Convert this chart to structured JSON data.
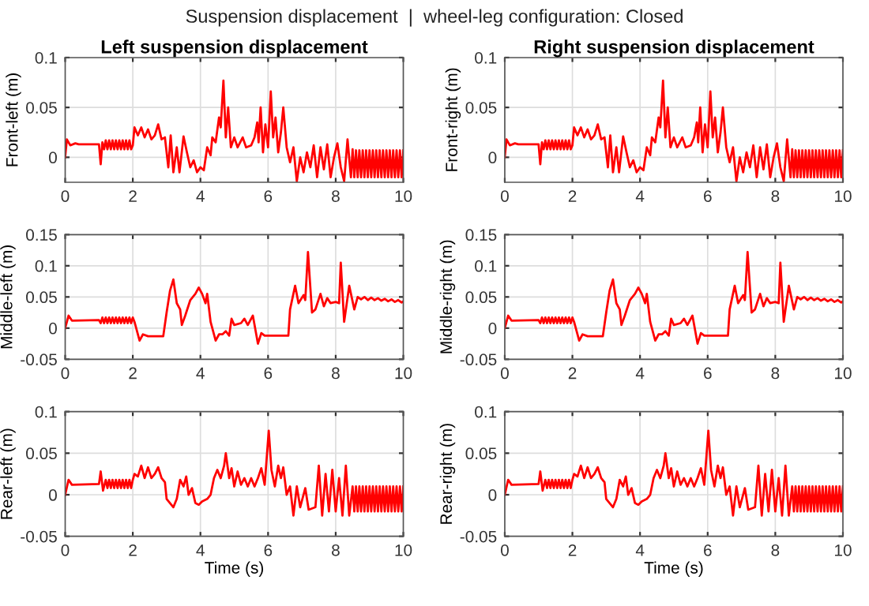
{
  "chart_data": [
    {
      "type": "line",
      "title": "Left suspension displacement",
      "annotations": [
        "Suspension displacement  |  wheel-leg configuration: Closed"
      ],
      "ylabel": "Front-left (m)",
      "xlim": [
        0,
        10
      ],
      "ylim": [
        -0.025,
        0.1
      ],
      "xticks": [
        0,
        2,
        4,
        6,
        8,
        10
      ],
      "yticks": [
        0,
        0.05,
        0.1
      ],
      "grid": true,
      "series": [
        {
          "color": "#ff0000",
          "x": [
            0,
            0.05,
            0.15,
            0.3,
            0.4,
            1.0,
            1.05,
            1.1,
            1.15,
            1.2,
            1.25,
            1.3,
            1.35,
            1.4,
            1.45,
            1.5,
            1.55,
            1.6,
            1.65,
            1.7,
            1.75,
            1.8,
            1.85,
            1.9,
            1.95,
            2.0,
            2.05,
            2.15,
            2.25,
            2.35,
            2.45,
            2.55,
            2.65,
            2.75,
            2.85,
            2.95,
            3.05,
            3.12,
            3.2,
            3.3,
            3.38,
            3.5,
            3.6,
            3.7,
            3.8,
            3.9,
            4.0,
            4.1,
            4.2,
            4.3,
            4.35,
            4.45,
            4.55,
            4.6,
            4.68,
            4.75,
            4.82,
            4.9,
            5.0,
            5.1,
            5.25,
            5.35,
            5.5,
            5.6,
            5.68,
            5.72,
            5.78,
            5.85,
            5.92,
            6.0,
            6.08,
            6.15,
            6.22,
            6.3,
            6.38,
            6.45,
            6.55,
            6.65,
            6.75,
            6.85,
            6.95,
            7.05,
            7.15,
            7.25,
            7.35,
            7.45,
            7.55,
            7.65,
            7.75,
            7.85,
            7.95,
            8.05,
            8.15,
            8.25,
            8.35,
            8.45,
            8.5,
            8.55,
            8.6,
            8.65,
            8.7,
            8.75,
            8.8,
            8.85,
            8.9,
            8.95,
            9.0,
            9.05,
            9.1,
            9.15,
            9.2,
            9.25,
            9.3,
            9.35,
            9.4,
            9.45,
            9.5,
            9.55,
            9.6,
            9.65,
            9.7,
            9.75,
            9.8,
            9.85,
            9.9,
            9.95,
            10.0
          ],
          "values": [
            0,
            0.018,
            0.012,
            0.014,
            0.013,
            0.013,
            -0.007,
            0.015,
            0.008,
            0.017,
            0.008,
            0.017,
            0.008,
            0.017,
            0.008,
            0.017,
            0.008,
            0.017,
            0.008,
            0.017,
            0.008,
            0.017,
            0.008,
            0.017,
            0.008,
            0.012,
            0.03,
            0.022,
            0.03,
            0.02,
            0.028,
            0.018,
            0.022,
            0.033,
            0.018,
            0.02,
            -0.01,
            0.022,
            -0.015,
            0.01,
            -0.015,
            0.021,
            0.005,
            -0.01,
            -0.003,
            -0.015,
            -0.01,
            -0.013,
            0.01,
            0.002,
            0.02,
            0.015,
            0.04,
            0.03,
            0.077,
            0.02,
            0.05,
            0.01,
            0.02,
            0.01,
            0.02,
            0.01,
            0.012,
            0.02,
            0.035,
            0.015,
            0.05,
            0.005,
            0.033,
            0.01,
            0.066,
            0.02,
            0.04,
            0.005,
            0.025,
            0.05,
            0.01,
            -0.005,
            0.01,
            -0.024,
            0,
            -0.015,
            0.005,
            -0.01,
            0.012,
            -0.02,
            0.01,
            -0.012,
            0.013,
            -0.02,
            0,
            0.014,
            -0.01,
            -0.024,
            0.018,
            -0.02,
            0.008,
            -0.02,
            0.007,
            -0.02,
            0.007,
            -0.02,
            0.007,
            -0.02,
            0.007,
            -0.02,
            0.007,
            -0.02,
            0.007,
            -0.02,
            0.007,
            -0.02,
            0.007,
            -0.02,
            0.007,
            -0.02,
            0.007,
            -0.02,
            0.007,
            -0.02,
            0.007,
            -0.02,
            0.007,
            -0.02,
            0.007,
            -0.02,
            0.007
          ]
        }
      ]
    },
    {
      "type": "line",
      "title": "Right suspension displacement",
      "ylabel": "Front-right (m)",
      "xlim": [
        0,
        10
      ],
      "ylim": [
        -0.025,
        0.1
      ],
      "xticks": [
        0,
        2,
        4,
        6,
        8,
        10
      ],
      "yticks": [
        0,
        0.05,
        0.1
      ],
      "grid": true,
      "series": [
        {
          "color": "#ff0000",
          "x": [
            0,
            0.05,
            0.15,
            0.3,
            0.4,
            1.0,
            1.05,
            1.1,
            1.15,
            1.2,
            1.25,
            1.3,
            1.35,
            1.4,
            1.45,
            1.5,
            1.55,
            1.6,
            1.65,
            1.7,
            1.75,
            1.8,
            1.85,
            1.9,
            1.95,
            2.0,
            2.05,
            2.15,
            2.25,
            2.35,
            2.45,
            2.55,
            2.65,
            2.75,
            2.85,
            2.95,
            3.05,
            3.12,
            3.2,
            3.3,
            3.38,
            3.5,
            3.6,
            3.7,
            3.8,
            3.9,
            4.0,
            4.1,
            4.2,
            4.3,
            4.35,
            4.45,
            4.55,
            4.6,
            4.68,
            4.75,
            4.82,
            4.9,
            5.0,
            5.1,
            5.25,
            5.35,
            5.5,
            5.6,
            5.68,
            5.72,
            5.78,
            5.85,
            5.92,
            6.0,
            6.08,
            6.15,
            6.22,
            6.3,
            6.38,
            6.45,
            6.55,
            6.65,
            6.75,
            6.85,
            6.95,
            7.05,
            7.15,
            7.25,
            7.35,
            7.45,
            7.55,
            7.65,
            7.75,
            7.85,
            7.95,
            8.05,
            8.15,
            8.25,
            8.35,
            8.45,
            8.5,
            8.55,
            8.6,
            8.65,
            8.7,
            8.75,
            8.8,
            8.85,
            8.9,
            8.95,
            9.0,
            9.05,
            9.1,
            9.15,
            9.2,
            9.25,
            9.3,
            9.35,
            9.4,
            9.45,
            9.5,
            9.55,
            9.6,
            9.65,
            9.7,
            9.75,
            9.8,
            9.85,
            9.9,
            9.95,
            10.0
          ],
          "values": [
            0,
            0.018,
            0.012,
            0.014,
            0.013,
            0.013,
            -0.007,
            0.015,
            0.008,
            0.017,
            0.008,
            0.017,
            0.008,
            0.017,
            0.008,
            0.017,
            0.008,
            0.017,
            0.008,
            0.017,
            0.008,
            0.017,
            0.008,
            0.017,
            0.008,
            0.012,
            0.03,
            0.022,
            0.03,
            0.02,
            0.028,
            0.018,
            0.022,
            0.033,
            0.018,
            0.02,
            -0.01,
            0.022,
            -0.015,
            0.01,
            -0.015,
            0.021,
            0.005,
            -0.01,
            -0.003,
            -0.015,
            -0.01,
            -0.013,
            0.01,
            0.002,
            0.02,
            0.015,
            0.04,
            0.03,
            0.077,
            0.02,
            0.05,
            0.01,
            0.02,
            0.01,
            0.02,
            0.01,
            0.012,
            0.02,
            0.035,
            0.015,
            0.05,
            0.005,
            0.033,
            0.01,
            0.066,
            0.02,
            0.04,
            0.005,
            0.025,
            0.05,
            0.01,
            -0.005,
            0.01,
            -0.024,
            0,
            -0.015,
            0.005,
            -0.01,
            0.012,
            -0.02,
            0.01,
            -0.012,
            0.013,
            -0.02,
            0,
            0.014,
            -0.01,
            -0.024,
            0.018,
            -0.02,
            0.008,
            -0.02,
            0.007,
            -0.02,
            0.007,
            -0.02,
            0.007,
            -0.02,
            0.007,
            -0.02,
            0.007,
            -0.02,
            0.007,
            -0.02,
            0.007,
            -0.02,
            0.007,
            -0.02,
            0.007,
            -0.02,
            0.007,
            -0.02,
            0.007,
            -0.02,
            0.007,
            -0.02,
            0.007,
            -0.02,
            0.007,
            -0.02,
            0.007
          ]
        }
      ]
    },
    {
      "type": "line",
      "ylabel": "Middle-left (m)",
      "xlim": [
        0,
        10
      ],
      "ylim": [
        -0.05,
        0.15
      ],
      "xticks": [
        0,
        2,
        4,
        6,
        8,
        10
      ],
      "yticks": [
        -0.05,
        0,
        0.05,
        0.1,
        0.15
      ],
      "grid": true,
      "series": [
        {
          "color": "#ff0000",
          "x": [
            0,
            0.1,
            0.2,
            1.0,
            1.05,
            1.1,
            1.15,
            1.2,
            1.25,
            1.3,
            1.35,
            1.4,
            1.45,
            1.5,
            1.55,
            1.6,
            1.65,
            1.7,
            1.75,
            1.8,
            1.85,
            1.9,
            1.95,
            2.0,
            2.05,
            2.2,
            2.3,
            2.45,
            2.9,
            3.0,
            3.1,
            3.2,
            3.3,
            3.4,
            3.45,
            3.55,
            3.7,
            3.85,
            3.95,
            4.05,
            4.15,
            4.2,
            4.3,
            4.45,
            4.55,
            4.65,
            4.75,
            4.85,
            4.92,
            5.0,
            5.2,
            5.3,
            5.4,
            5.55,
            5.6,
            5.7,
            5.8,
            5.9,
            6.6,
            6.65,
            6.8,
            6.9,
            7.05,
            7.1,
            7.18,
            7.3,
            7.4,
            7.55,
            7.65,
            7.75,
            7.85,
            8.0,
            8.1,
            8.15,
            8.25,
            8.4,
            8.55,
            8.65,
            8.75,
            8.85,
            8.95,
            9.05,
            9.15,
            9.25,
            9.35,
            9.45,
            9.55,
            9.65,
            9.75,
            9.85,
            9.95,
            10.0
          ],
          "values": [
            0,
            0.02,
            0.012,
            0.013,
            0.008,
            0.017,
            0.008,
            0.017,
            0.008,
            0.017,
            0.008,
            0.017,
            0.008,
            0.017,
            0.008,
            0.017,
            0.008,
            0.017,
            0.008,
            0.017,
            0.008,
            0.017,
            0.008,
            0.017,
            0.01,
            -0.02,
            -0.01,
            -0.013,
            -0.013,
            0.025,
            0.06,
            0.078,
            0.04,
            0.03,
            0.005,
            0.02,
            0.045,
            0.055,
            0.065,
            0.055,
            0.04,
            0.055,
            0.01,
            -0.02,
            -0.01,
            -0.01,
            -0.005,
            -0.012,
            0.015,
            0.005,
            0.008,
            0.015,
            0.005,
            0.02,
            0.005,
            -0.025,
            -0.008,
            -0.012,
            -0.012,
            0.03,
            0.068,
            0.04,
            0.053,
            0.045,
            0.122,
            0.025,
            0.03,
            0.055,
            0.035,
            0.048,
            0.04,
            0.042,
            0.04,
            0.105,
            0.01,
            0.068,
            0.03,
            0.05,
            0.046,
            0.05,
            0.045,
            0.049,
            0.045,
            0.048,
            0.044,
            0.047,
            0.043,
            0.046,
            0.042,
            0.045,
            0.041,
            0.043
          ]
        }
      ]
    },
    {
      "type": "line",
      "ylabel": "Middle-right (m)",
      "xlim": [
        0,
        10
      ],
      "ylim": [
        -0.05,
        0.15
      ],
      "xticks": [
        0,
        2,
        4,
        6,
        8,
        10
      ],
      "yticks": [
        -0.05,
        0,
        0.05,
        0.1,
        0.15
      ],
      "grid": true,
      "series": [
        {
          "color": "#ff0000",
          "x": [
            0,
            0.1,
            0.2,
            1.0,
            1.05,
            1.1,
            1.15,
            1.2,
            1.25,
            1.3,
            1.35,
            1.4,
            1.45,
            1.5,
            1.55,
            1.6,
            1.65,
            1.7,
            1.75,
            1.8,
            1.85,
            1.9,
            1.95,
            2.0,
            2.05,
            2.2,
            2.3,
            2.45,
            2.9,
            3.0,
            3.1,
            3.2,
            3.3,
            3.4,
            3.45,
            3.55,
            3.7,
            3.85,
            3.95,
            4.05,
            4.15,
            4.2,
            4.3,
            4.45,
            4.55,
            4.65,
            4.75,
            4.85,
            4.92,
            5.0,
            5.2,
            5.3,
            5.4,
            5.55,
            5.6,
            5.7,
            5.8,
            5.9,
            6.6,
            6.65,
            6.8,
            6.9,
            7.05,
            7.1,
            7.18,
            7.3,
            7.4,
            7.55,
            7.65,
            7.75,
            7.85,
            8.0,
            8.1,
            8.15,
            8.25,
            8.4,
            8.55,
            8.65,
            8.75,
            8.85,
            8.95,
            9.05,
            9.15,
            9.25,
            9.35,
            9.45,
            9.55,
            9.65,
            9.75,
            9.85,
            9.95,
            10.0
          ],
          "values": [
            0,
            0.02,
            0.012,
            0.013,
            0.008,
            0.017,
            0.008,
            0.017,
            0.008,
            0.017,
            0.008,
            0.017,
            0.008,
            0.017,
            0.008,
            0.017,
            0.008,
            0.017,
            0.008,
            0.017,
            0.008,
            0.017,
            0.008,
            0.017,
            0.01,
            -0.02,
            -0.01,
            -0.013,
            -0.013,
            0.025,
            0.06,
            0.078,
            0.04,
            0.03,
            0.005,
            0.02,
            0.045,
            0.055,
            0.065,
            0.055,
            0.04,
            0.055,
            0.01,
            -0.02,
            -0.01,
            -0.01,
            -0.005,
            -0.012,
            0.015,
            0.005,
            0.008,
            0.015,
            0.005,
            0.02,
            0.005,
            -0.025,
            -0.008,
            -0.012,
            -0.012,
            0.03,
            0.068,
            0.04,
            0.053,
            0.045,
            0.122,
            0.025,
            0.03,
            0.055,
            0.035,
            0.048,
            0.04,
            0.042,
            0.04,
            0.105,
            0.01,
            0.068,
            0.03,
            0.05,
            0.046,
            0.05,
            0.045,
            0.049,
            0.045,
            0.048,
            0.044,
            0.047,
            0.043,
            0.046,
            0.042,
            0.045,
            0.041,
            0.043
          ]
        }
      ]
    },
    {
      "type": "line",
      "ylabel": "Rear-left (m)",
      "xlabel": "Time (s)",
      "xlim": [
        0,
        10
      ],
      "ylim": [
        -0.05,
        0.1
      ],
      "xticks": [
        0,
        2,
        4,
        6,
        8,
        10
      ],
      "yticks": [
        -0.05,
        0,
        0.05,
        0.1
      ],
      "grid": true,
      "series": [
        {
          "color": "#ff0000",
          "x": [
            0,
            0.1,
            0.2,
            1.0,
            1.05,
            1.12,
            1.2,
            1.25,
            1.3,
            1.35,
            1.4,
            1.45,
            1.5,
            1.55,
            1.6,
            1.65,
            1.7,
            1.75,
            1.8,
            1.85,
            1.9,
            1.95,
            2.0,
            2.05,
            2.15,
            2.25,
            2.35,
            2.45,
            2.55,
            2.65,
            2.75,
            2.85,
            2.95,
            3.0,
            3.1,
            3.2,
            3.3,
            3.4,
            3.5,
            3.58,
            3.65,
            3.75,
            3.85,
            3.95,
            4.05,
            4.2,
            4.3,
            4.4,
            4.5,
            4.6,
            4.7,
            4.75,
            4.85,
            4.92,
            5.0,
            5.1,
            5.2,
            5.3,
            5.4,
            5.5,
            5.6,
            5.7,
            5.8,
            5.9,
            6.02,
            6.1,
            6.2,
            6.3,
            6.38,
            6.45,
            6.55,
            6.65,
            6.75,
            6.85,
            6.95,
            7.1,
            7.2,
            7.4,
            7.5,
            7.6,
            7.7,
            7.8,
            7.9,
            8.0,
            8.1,
            8.2,
            8.3,
            8.4,
            8.5,
            8.55,
            8.6,
            8.65,
            8.7,
            8.75,
            8.8,
            8.85,
            8.9,
            8.95,
            9.0,
            9.05,
            9.1,
            9.15,
            9.2,
            9.25,
            9.3,
            9.35,
            9.4,
            9.45,
            9.5,
            9.55,
            9.6,
            9.65,
            9.7,
            9.75,
            9.8,
            9.85,
            9.9,
            9.95,
            10.0
          ],
          "values": [
            0,
            0.018,
            0.012,
            0.013,
            0.028,
            0.005,
            0.018,
            0.008,
            0.018,
            0.008,
            0.018,
            0.008,
            0.018,
            0.008,
            0.018,
            0.008,
            0.018,
            0.008,
            0.018,
            0.008,
            0.018,
            0.008,
            0.018,
            0.025,
            0.022,
            0.035,
            0.02,
            0.033,
            0.02,
            0.025,
            0.033,
            0.02,
            0.015,
            -0.005,
            -0.01,
            -0.015,
            -0.005,
            0.018,
            0.01,
            0.022,
            0,
            0.008,
            -0.01,
            -0.012,
            -0.008,
            -0.005,
            0,
            0.02,
            0.03,
            0.02,
            0.035,
            0.05,
            0.02,
            0.032,
            0.01,
            0.028,
            0.012,
            0.02,
            0.01,
            0.02,
            0.01,
            0.02,
            0.032,
            0.012,
            0.077,
            0.03,
            0.01,
            0.035,
            0.02,
            0.033,
            0,
            0.01,
            -0.025,
            0.01,
            -0.015,
            0.008,
            -0.018,
            -0.015,
            0.035,
            -0.025,
            0.025,
            -0.02,
            0.03,
            -0.02,
            0.02,
            -0.025,
            0.035,
            -0.025,
            0.01,
            -0.02,
            0.01,
            -0.02,
            0.01,
            -0.02,
            0.01,
            -0.02,
            0.01,
            -0.02,
            0.01,
            -0.02,
            0.01,
            -0.02,
            0.01,
            -0.02,
            0.01,
            -0.02,
            0.01,
            -0.02,
            0.01,
            -0.02,
            0.01,
            -0.02,
            0.01,
            -0.02,
            0.01,
            -0.02,
            0.01,
            -0.02,
            0.01
          ]
        }
      ]
    },
    {
      "type": "line",
      "ylabel": "Rear-right (m)",
      "xlabel": "Time (s)",
      "xlim": [
        0,
        10
      ],
      "ylim": [
        -0.05,
        0.1
      ],
      "xticks": [
        0,
        2,
        4,
        6,
        8,
        10
      ],
      "yticks": [
        -0.05,
        0,
        0.05,
        0.1
      ],
      "grid": true,
      "series": [
        {
          "color": "#ff0000",
          "x": [
            0,
            0.1,
            0.2,
            1.0,
            1.05,
            1.12,
            1.2,
            1.25,
            1.3,
            1.35,
            1.4,
            1.45,
            1.5,
            1.55,
            1.6,
            1.65,
            1.7,
            1.75,
            1.8,
            1.85,
            1.9,
            1.95,
            2.0,
            2.05,
            2.15,
            2.25,
            2.35,
            2.45,
            2.55,
            2.65,
            2.75,
            2.85,
            2.95,
            3.0,
            3.1,
            3.2,
            3.3,
            3.4,
            3.5,
            3.58,
            3.65,
            3.75,
            3.85,
            3.95,
            4.05,
            4.2,
            4.3,
            4.4,
            4.5,
            4.6,
            4.7,
            4.75,
            4.85,
            4.92,
            5.0,
            5.1,
            5.2,
            5.3,
            5.4,
            5.5,
            5.6,
            5.7,
            5.8,
            5.9,
            6.02,
            6.1,
            6.2,
            6.3,
            6.38,
            6.45,
            6.55,
            6.65,
            6.75,
            6.85,
            6.95,
            7.1,
            7.2,
            7.4,
            7.5,
            7.6,
            7.7,
            7.8,
            7.9,
            8.0,
            8.1,
            8.2,
            8.3,
            8.4,
            8.5,
            8.55,
            8.6,
            8.65,
            8.7,
            8.75,
            8.8,
            8.85,
            8.9,
            8.95,
            9.0,
            9.05,
            9.1,
            9.15,
            9.2,
            9.25,
            9.3,
            9.35,
            9.4,
            9.45,
            9.5,
            9.55,
            9.6,
            9.65,
            9.7,
            9.75,
            9.8,
            9.85,
            9.9,
            9.95,
            10.0
          ],
          "values": [
            0,
            0.018,
            0.012,
            0.013,
            0.028,
            0.005,
            0.018,
            0.008,
            0.018,
            0.008,
            0.018,
            0.008,
            0.018,
            0.008,
            0.018,
            0.008,
            0.018,
            0.008,
            0.018,
            0.008,
            0.018,
            0.008,
            0.018,
            0.025,
            0.022,
            0.035,
            0.02,
            0.033,
            0.02,
            0.025,
            0.033,
            0.02,
            0.015,
            -0.005,
            -0.01,
            -0.015,
            -0.005,
            0.018,
            0.01,
            0.022,
            0,
            0.008,
            -0.01,
            -0.012,
            -0.008,
            -0.005,
            0,
            0.02,
            0.03,
            0.02,
            0.035,
            0.05,
            0.02,
            0.032,
            0.01,
            0.028,
            0.012,
            0.02,
            0.01,
            0.02,
            0.01,
            0.02,
            0.032,
            0.012,
            0.077,
            0.03,
            0.01,
            0.035,
            0.02,
            0.033,
            0,
            0.01,
            -0.025,
            0.01,
            -0.015,
            0.008,
            -0.018,
            -0.015,
            0.035,
            -0.025,
            0.025,
            -0.02,
            0.03,
            -0.02,
            0.02,
            -0.025,
            0.035,
            -0.025,
            0.01,
            -0.02,
            0.01,
            -0.02,
            0.01,
            -0.02,
            0.01,
            -0.02,
            0.01,
            -0.02,
            0.01,
            -0.02,
            0.01,
            -0.02,
            0.01,
            -0.02,
            0.01,
            -0.02,
            0.01,
            -0.02,
            0.01,
            -0.02,
            0.01,
            -0.02,
            0.01,
            -0.02,
            0.01,
            -0.02,
            0.01,
            -0.02,
            0.01
          ]
        }
      ]
    }
  ]
}
